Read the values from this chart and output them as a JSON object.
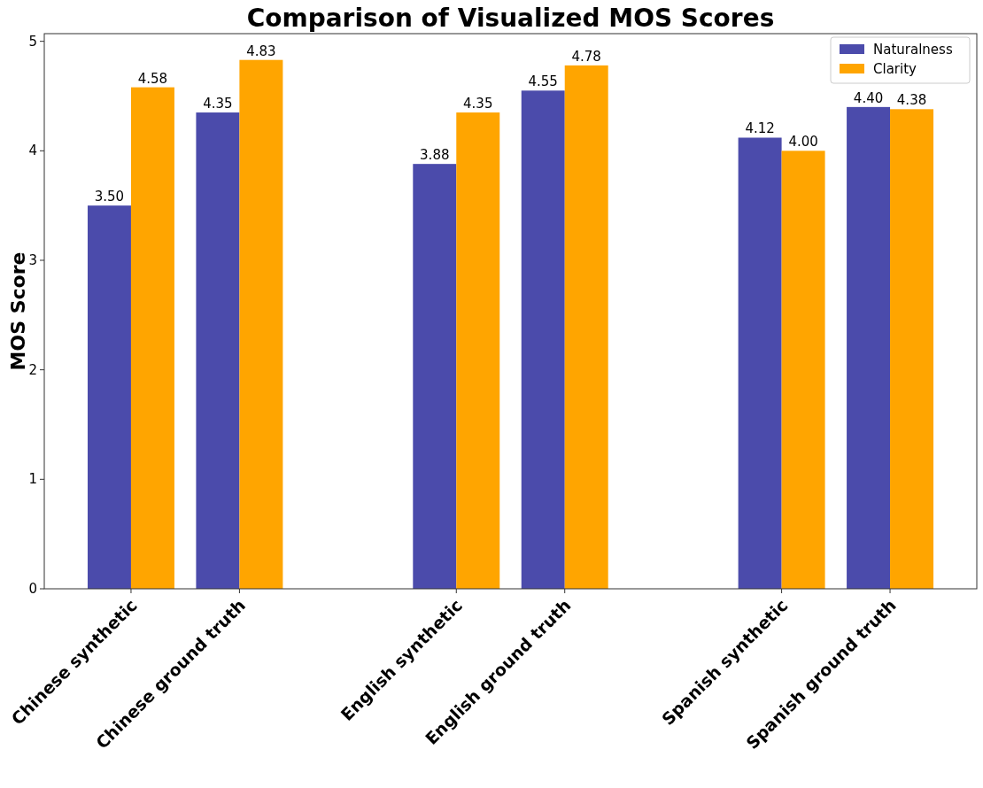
{
  "chart_data": {
    "type": "bar",
    "title": "Comparison of Visualized MOS Scores",
    "ylabel": "MOS Score",
    "categories": [
      "Chinese synthetic",
      "Chinese ground truth",
      null,
      "English synthetic",
      "English ground truth",
      null,
      "Spanish synthetic",
      "Spanish ground truth"
    ],
    "series": [
      {
        "name": "Naturalness",
        "color": "#4b4bab",
        "values": [
          3.5,
          4.35,
          null,
          3.88,
          4.55,
          null,
          4.12,
          4.4
        ],
        "value_labels": [
          "3.50",
          "4.35",
          null,
          "3.88",
          "4.55",
          null,
          "4.12",
          "4.40"
        ]
      },
      {
        "name": "Clarity",
        "color": "#ffa500",
        "values": [
          4.58,
          4.83,
          null,
          4.35,
          4.78,
          null,
          4.0,
          4.38
        ],
        "value_labels": [
          "4.58",
          "4.83",
          null,
          "4.35",
          "4.78",
          null,
          "4.00",
          "4.38"
        ]
      }
    ],
    "ylim": [
      0,
      5.07
    ],
    "yticks": [
      0,
      1,
      2,
      3,
      4,
      5
    ],
    "legend": "top right",
    "grid": false
  }
}
